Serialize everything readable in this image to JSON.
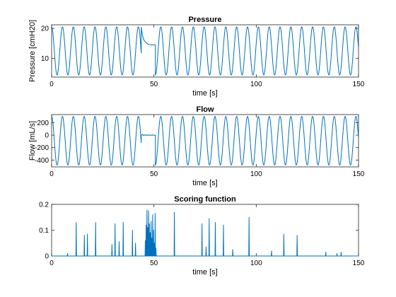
{
  "chart_data": [
    {
      "type": "line",
      "title": "Pressure",
      "xlabel": "time [s]",
      "ylabel": "Pressure [cmH20]",
      "xlim": [
        0,
        150
      ],
      "ylim": [
        3.8,
        21.2
      ],
      "xticks": [
        0,
        50,
        100,
        150
      ],
      "yticks": [
        10,
        20
      ],
      "series": [
        {
          "color": "#0072BD",
          "signal": "sinusoid",
          "period_s": 5.3,
          "min": 4.5,
          "max": 20.5,
          "gap": {
            "start_s": 43.8,
            "end_s": 50.7,
            "points": [
              [
                43.8,
                20.4
              ],
              [
                44.3,
                18.0
              ],
              [
                45.0,
                16.2
              ],
              [
                46.0,
                15.4
              ],
              [
                47.0,
                14.8
              ],
              [
                48.0,
                14.6
              ],
              [
                49.0,
                14.5
              ],
              [
                50.0,
                14.5
              ],
              [
                50.7,
                14.5
              ]
            ]
          }
        }
      ]
    },
    {
      "type": "line",
      "title": "Flow",
      "xlabel": "time [s]",
      "ylabel": "Flow [mL/s]",
      "xlim": [
        0,
        150
      ],
      "ylim": [
        -510,
        330
      ],
      "xticks": [
        0,
        50,
        100,
        150
      ],
      "yticks": [
        -400,
        -200,
        0,
        200
      ],
      "series": [
        {
          "color": "#0072BD",
          "signal": "sinusoid",
          "period_s": 5.3,
          "min": -480,
          "max": 300,
          "gap": {
            "start_s": 43.8,
            "end_s": 50.7,
            "points": [
              [
                43.8,
                0
              ],
              [
                44.5,
                12
              ],
              [
                45.0,
                -8
              ],
              [
                45.5,
                6
              ],
              [
                46.0,
                -5
              ],
              [
                46.5,
                4
              ],
              [
                47.0,
                -6
              ],
              [
                47.5,
                5
              ],
              [
                48.0,
                -4
              ],
              [
                48.5,
                3
              ],
              [
                49.0,
                -5
              ],
              [
                49.5,
                4
              ],
              [
                50.0,
                -3
              ],
              [
                50.7,
                0
              ]
            ]
          }
        }
      ]
    },
    {
      "type": "line",
      "title": "Scoring function",
      "xlabel": "time [s]",
      "ylabel": "",
      "xlim": [
        0,
        150
      ],
      "ylim": [
        0,
        0.2
      ],
      "xticks": [
        0,
        50,
        100,
        150
      ],
      "yticks": [
        0,
        0.1,
        0.2
      ],
      "series": [
        {
          "color": "#0072BD",
          "spikes": [
            [
              7.8,
              0.01
            ],
            [
              12,
              0.13
            ],
            [
              16,
              0.08
            ],
            [
              17.5,
              0.085
            ],
            [
              21.5,
              0.13
            ],
            [
              29.5,
              0.045
            ],
            [
              31,
              0.125
            ],
            [
              33,
              0.055
            ],
            [
              35,
              0.13
            ],
            [
              39.5,
              0.1
            ],
            [
              41,
              0.05
            ],
            [
              45.8,
              0.06
            ],
            [
              46.2,
              0.12
            ],
            [
              46.6,
              0.178
            ],
            [
              47.0,
              0.11
            ],
            [
              47.4,
              0.175
            ],
            [
              47.8,
              0.125
            ],
            [
              48.2,
              0.09
            ],
            [
              48.6,
              0.135
            ],
            [
              49.0,
              0.07
            ],
            [
              49.4,
              0.16
            ],
            [
              49.8,
              0.1
            ],
            [
              50.2,
              0.05
            ],
            [
              50.6,
              0.165
            ],
            [
              51.0,
              0.03
            ],
            [
              60,
              0.17
            ],
            [
              73.5,
              0.125
            ],
            [
              75.5,
              0.035
            ],
            [
              77,
              0.145
            ],
            [
              80,
              0.13
            ],
            [
              84,
              0.12
            ],
            [
              88.5,
              0.025
            ],
            [
              96.5,
              0.15
            ],
            [
              107.5,
              0.02
            ],
            [
              113.5,
              0.085
            ],
            [
              120,
              0.08
            ],
            [
              134,
              0.015
            ],
            [
              139.5,
              0.01
            ],
            [
              141.5,
              0.015
            ]
          ]
        }
      ]
    }
  ]
}
